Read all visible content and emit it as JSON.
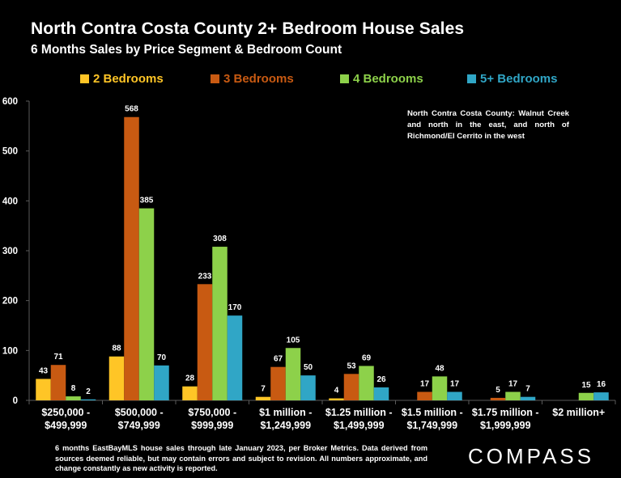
{
  "header": {
    "title": "North Contra Costa County 2+ Bedroom House Sales",
    "subtitle": "6 Months Sales by Price Segment & Bedroom Count"
  },
  "note": "North Contra Costa County: Walnut Creek and north in the east, and north of Richmond/El Cerrito in the west",
  "footnote": "6 months EastBayMLS house sales through late January 2023, per Broker Metrics. Data derived from sources deemed reliable, but may contain errors and subject to revision. All numbers approximate, and change constantly as new activity is reported.",
  "logo": "COMPASS",
  "colors": {
    "background": "#000000",
    "text": "#ffffff",
    "axis": "#5a5a5a",
    "two": "#ffc526",
    "three": "#c85a12",
    "four": "#8dd14a",
    "five": "#30a6c6"
  },
  "chart_data": {
    "type": "bar",
    "categories": [
      [
        "$250,000 -",
        "$499,999"
      ],
      [
        "$500,000 -",
        "$749,999"
      ],
      [
        "$750,000 -",
        "$999,999"
      ],
      [
        "$1 million -",
        "$1,249,999"
      ],
      [
        "$1.25 million -",
        "$1,499,999"
      ],
      [
        "$1.5 million -",
        "$1,749,999"
      ],
      [
        "$1.75 million -",
        "$1,999,999"
      ],
      [
        "$2 million+"
      ]
    ],
    "series": [
      {
        "name": "2 Bedrooms",
        "color": "#ffc526",
        "values": [
          43,
          88,
          28,
          7,
          4,
          0,
          0,
          0
        ],
        "labels": [
          "43",
          "88",
          "28",
          "7",
          "4",
          "",
          "",
          ""
        ]
      },
      {
        "name": "3 Bedrooms",
        "color": "#c85a12",
        "values": [
          71,
          568,
          233,
          67,
          53,
          17,
          5,
          0
        ],
        "labels": [
          "71",
          "568",
          "233",
          "67",
          "53",
          "17",
          "5",
          ""
        ]
      },
      {
        "name": "4 Bedrooms",
        "color": "#8dd14a",
        "values": [
          8,
          385,
          308,
          105,
          69,
          48,
          17,
          15
        ],
        "labels": [
          "8",
          "385",
          "308",
          "105",
          "69",
          "48",
          "17",
          "15"
        ]
      },
      {
        "name": "5+ Bedrooms",
        "color": "#30a6c6",
        "values": [
          2,
          70,
          170,
          50,
          26,
          17,
          7,
          16
        ],
        "labels": [
          "2",
          "70",
          "170",
          "50",
          "26",
          "17",
          "7",
          "16"
        ]
      }
    ],
    "yticks": [
      "0",
      "100",
      "200",
      "300",
      "400",
      "500",
      "600"
    ],
    "ylim": [
      0,
      600
    ],
    "grid": false,
    "legend_position": "top"
  }
}
